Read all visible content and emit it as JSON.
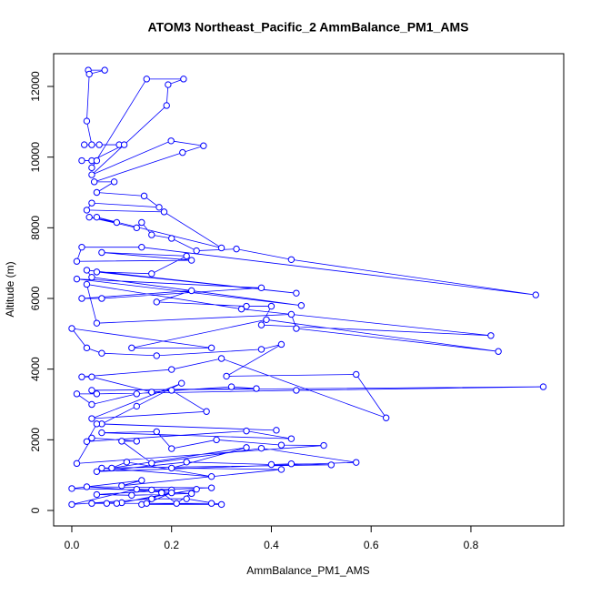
{
  "chart_data": {
    "type": "line",
    "title": "ATOM3 Northeast_Pacific_2 AmmBalance_PM1_AMS",
    "xlabel": "AmmBalance_PM1_AMS",
    "ylabel": "Altitude (m)",
    "color": "#0000ff",
    "xlim": [
      -0.0364,
      0.986
    ],
    "ylim": [
      -438,
      12927
    ],
    "xticks": [
      {
        "value": 0,
        "label": "0.0"
      },
      {
        "value": 0.2,
        "label": "0.2"
      },
      {
        "value": 0.4,
        "label": "0.4"
      },
      {
        "value": 0.6,
        "label": "0.6"
      },
      {
        "value": 0.8,
        "label": "0.8"
      }
    ],
    "yticks": [
      0,
      2000,
      4000,
      6000,
      8000,
      10000,
      12000
    ],
    "x": [
      0.033,
      0.066,
      0.035,
      0.03,
      0.04,
      0.025,
      0.055,
      0.095,
      0.105,
      0.04,
      0.02,
      0.05,
      0.04,
      0.15,
      0.224,
      0.193,
      0.19,
      0.04,
      0.199,
      0.264,
      0.222,
      0.045,
      0.085,
      0.05,
      0.145,
      0.175,
      0.04,
      0.03,
      0.185,
      0.3,
      0.05,
      0.09,
      0.035,
      0.13,
      0.14,
      0.16,
      0.2,
      0.25,
      0.33,
      0.44,
      0.93,
      0.14,
      0.02,
      0.01,
      0.24,
      0.06,
      0.23,
      0.16,
      0.05,
      0.45,
      0.03,
      0.04,
      0.46,
      0.01,
      0.38,
      0.06,
      0.02,
      0.24,
      0.17,
      0.35,
      0.4,
      0.38,
      0.84,
      0.34,
      0.03,
      0.05,
      0.44,
      0.45,
      0.855,
      0.39,
      0.12,
      0.28,
      0.0,
      0.03,
      0.06,
      0.17,
      0.38,
      0.42,
      0.31,
      0.57,
      0.63,
      0.3,
      0.2,
      0.02,
      0.04,
      0.16,
      0.32,
      0.37,
      0.04,
      0.945,
      0.45,
      0.05,
      0.01,
      0.04,
      0.13,
      0.2,
      0.27,
      0.04,
      0.22,
      0.13,
      0.06,
      0.41,
      0.05,
      0.03,
      0.35,
      0.44,
      0.06,
      0.17,
      0.2,
      0.29,
      0.42,
      0.505,
      0.01,
      0.04,
      0.13,
      0.1,
      0.16,
      0.38,
      0.57,
      0.05,
      0.23,
      0.4,
      0.44,
      0.52,
      0.06,
      0.28,
      0.11,
      0.08,
      0.35,
      0.2,
      0.42,
      0.1,
      0.14,
      0.0,
      0.16,
      0.28,
      0.03,
      0.18,
      0.24,
      0.12,
      0.05,
      0.2,
      0.13,
      0.0,
      0.16,
      0.23,
      0.3,
      0.14,
      0.28,
      0.04,
      0.1,
      0.2,
      0.15,
      0.18,
      0.21,
      0.25,
      0.09,
      0.07
    ],
    "values": [
      12460,
      12460,
      12350,
      11020,
      10350,
      10350,
      10350,
      10350,
      10350,
      9900,
      9900,
      9900,
      9700,
      12210,
      12210,
      12050,
      11460,
      9500,
      10460,
      10320,
      10130,
      9300,
      9300,
      9000,
      8900,
      8580,
      8700,
      8500,
      8450,
      7430,
      8300,
      8150,
      8300,
      8000,
      8150,
      7800,
      7700,
      7350,
      7400,
      7100,
      6100,
      7450,
      7450,
      7050,
      7080,
      7300,
      7200,
      6700,
      6750,
      6150,
      6800,
      6600,
      5800,
      6550,
      6300,
      6000,
      6000,
      6220,
      5900,
      5780,
      5780,
      5250,
      4950,
      5700,
      6400,
      5300,
      5550,
      5150,
      4500,
      5400,
      4600,
      4600,
      5150,
      4600,
      4450,
      4380,
      4560,
      4700,
      3800,
      3850,
      2620,
      4300,
      3990,
      3780,
      3780,
      3350,
      3500,
      3450,
      3400,
      3500,
      3400,
      3300,
      3300,
      3000,
      3300,
      3400,
      2800,
      2600,
      3600,
      2950,
      2450,
      2270,
      2450,
      1950,
      2250,
      2030,
      2200,
      2230,
      1750,
      2000,
      1850,
      1840,
      1330,
      2050,
      1960,
      1960,
      1340,
      1760,
      1360,
      1100,
      1370,
      1300,
      1320,
      1290,
      1200,
      960,
      1370,
      1200,
      1780,
      1200,
      1160,
      700,
      850,
      620,
      580,
      640,
      670,
      520,
      480,
      430,
      450,
      580,
      600,
      170,
      330,
      330,
      170,
      170,
      200,
      200,
      220,
      500,
      200,
      500,
      200,
      600,
      200,
      200
    ]
  }
}
